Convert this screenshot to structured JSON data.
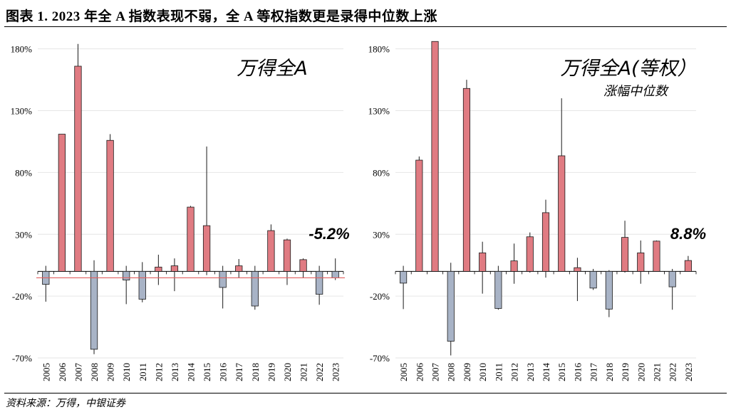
{
  "title": "图表 1. 2023 年全 A 指数表现不弱，全 A 等权指数更是录得中位数上涨",
  "source": "资料来源：万得，中银证券",
  "colors": {
    "positive": "#e07b82",
    "negative": "#a8b3c6",
    "bar_stroke": "#1a1a1a",
    "reference_line": "#e06060",
    "grid": "#e6e6e6"
  },
  "chart_data": [
    {
      "type": "bar",
      "title": "万得全A",
      "subtitle": "",
      "annotation": "-5.2%",
      "categories": [
        "2005",
        "2006",
        "2007",
        "2008",
        "2009",
        "2010",
        "2011",
        "2012",
        "2013",
        "2014",
        "2015",
        "2016",
        "2017",
        "2018",
        "2019",
        "2020",
        "2021",
        "2022",
        "2023"
      ],
      "values": [
        -10.5,
        111,
        166,
        -63,
        106,
        -7,
        -22.5,
        3.5,
        4.5,
        52,
        37,
        -13,
        4.5,
        -28,
        33,
        25.5,
        9.5,
        -18.5,
        -5.2
      ],
      "high": [
        4.5,
        111,
        184,
        9,
        111,
        4.5,
        7.5,
        13.5,
        10.5,
        53,
        101,
        4.5,
        10,
        4.5,
        38,
        26.5,
        10.5,
        4.5,
        10.5
      ],
      "low": [
        -24.5,
        0,
        0,
        -67,
        0,
        -26.5,
        -25,
        -11,
        -16,
        0,
        -3,
        -30,
        -5.5,
        -31,
        0,
        -11,
        -5.5,
        -27,
        -7
      ],
      "reference_value": -5.2,
      "yticks": [
        -70,
        -20,
        30,
        80,
        130,
        180
      ],
      "ytick_labels": [
        "-70%",
        "-20%",
        "30%",
        "80%",
        "130%",
        "180%"
      ],
      "ylim": [
        -70,
        185
      ],
      "grid": true
    },
    {
      "type": "bar",
      "title": "万得全A(等权）",
      "subtitle": "涨幅中位数",
      "annotation": "8.8%",
      "categories": [
        "2005",
        "2006",
        "2007",
        "2008",
        "2009",
        "2010",
        "2011",
        "2012",
        "2013",
        "2014",
        "2015",
        "2016",
        "2017",
        "2018",
        "2019",
        "2020",
        "2021",
        "2022",
        "2023"
      ],
      "values": [
        -9.5,
        90,
        186,
        -56.5,
        148,
        15,
        -30,
        8.5,
        28,
        47.5,
        93.5,
        3,
        -13.5,
        -30.5,
        27.5,
        15,
        24.5,
        -12.5,
        8.8
      ],
      "high": [
        4.5,
        93,
        186,
        7,
        155,
        24,
        4.5,
        22.5,
        31.5,
        58,
        140,
        11,
        2,
        1,
        41,
        25,
        25,
        2,
        12.5
      ],
      "low": [
        -30.5,
        0,
        0,
        -68,
        0,
        -18,
        -31,
        -10,
        -1,
        -5,
        0,
        -24,
        -15,
        -37,
        -1,
        -10,
        0,
        -31,
        0
      ],
      "yticks": [
        -70,
        -20,
        30,
        80,
        130,
        180
      ],
      "ytick_labels": [
        "-70%",
        "-20%",
        "30%",
        "80%",
        "130%",
        "180%"
      ],
      "ylim": [
        -70,
        185
      ],
      "grid": true
    }
  ]
}
